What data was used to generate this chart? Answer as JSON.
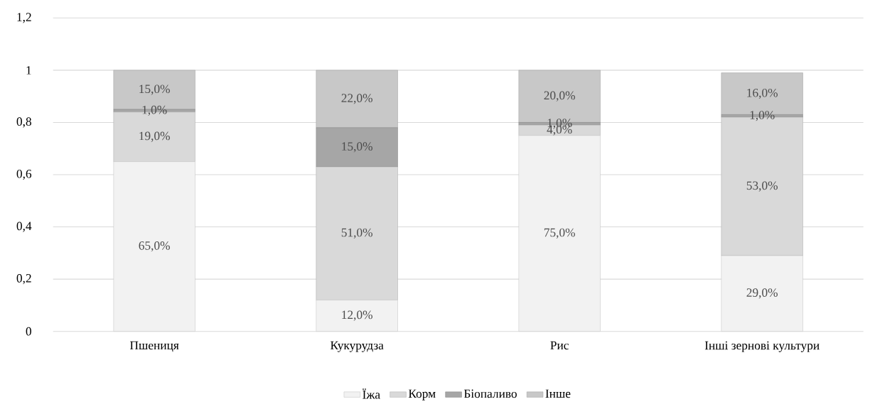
{
  "chart_data": {
    "type": "bar",
    "stacked": true,
    "grid": "y",
    "legend": "bottom",
    "categories": [
      "Пшениця",
      "Кукурудза",
      "Рис",
      "Інші зернові культури"
    ],
    "ylim": [
      0,
      1.2
    ],
    "yticks": [
      0,
      {
        "value": 0.2,
        "label": "0,2"
      },
      {
        "value": 0.4,
        "label": "0,4"
      },
      {
        "value": 0.6,
        "label": "0,6"
      },
      {
        "value": 0.8,
        "label": "0,8"
      },
      1,
      {
        "value": 1.2,
        "label": "1,2"
      }
    ],
    "series": [
      {
        "name": "Їжа",
        "color": "#f2f2f2",
        "values": [
          0.65,
          0.12,
          0.75,
          0.29
        ],
        "value_labels": [
          "65,0%",
          "12,0%",
          "75,0%",
          "29,0%"
        ]
      },
      {
        "name": "Корм",
        "color": "#d9d9d9",
        "values": [
          0.19,
          0.51,
          0.04,
          0.53
        ],
        "value_labels": [
          "19,0%",
          "51,0%",
          "4,0%",
          "53,0%"
        ]
      },
      {
        "name": "Біопаливо",
        "color": "#a6a6a6",
        "values": [
          0.01,
          0.15,
          0.01,
          0.01
        ],
        "value_labels": [
          "1,0%",
          "15,0%",
          "1,0%",
          "1,0%"
        ]
      },
      {
        "name": "Інше",
        "color": "#c8c8c8",
        "values": [
          0.15,
          0.22,
          0.2,
          0.16
        ],
        "value_labels": [
          "15,0%",
          "22,0%",
          "20,0%",
          "16,0%"
        ]
      }
    ]
  }
}
